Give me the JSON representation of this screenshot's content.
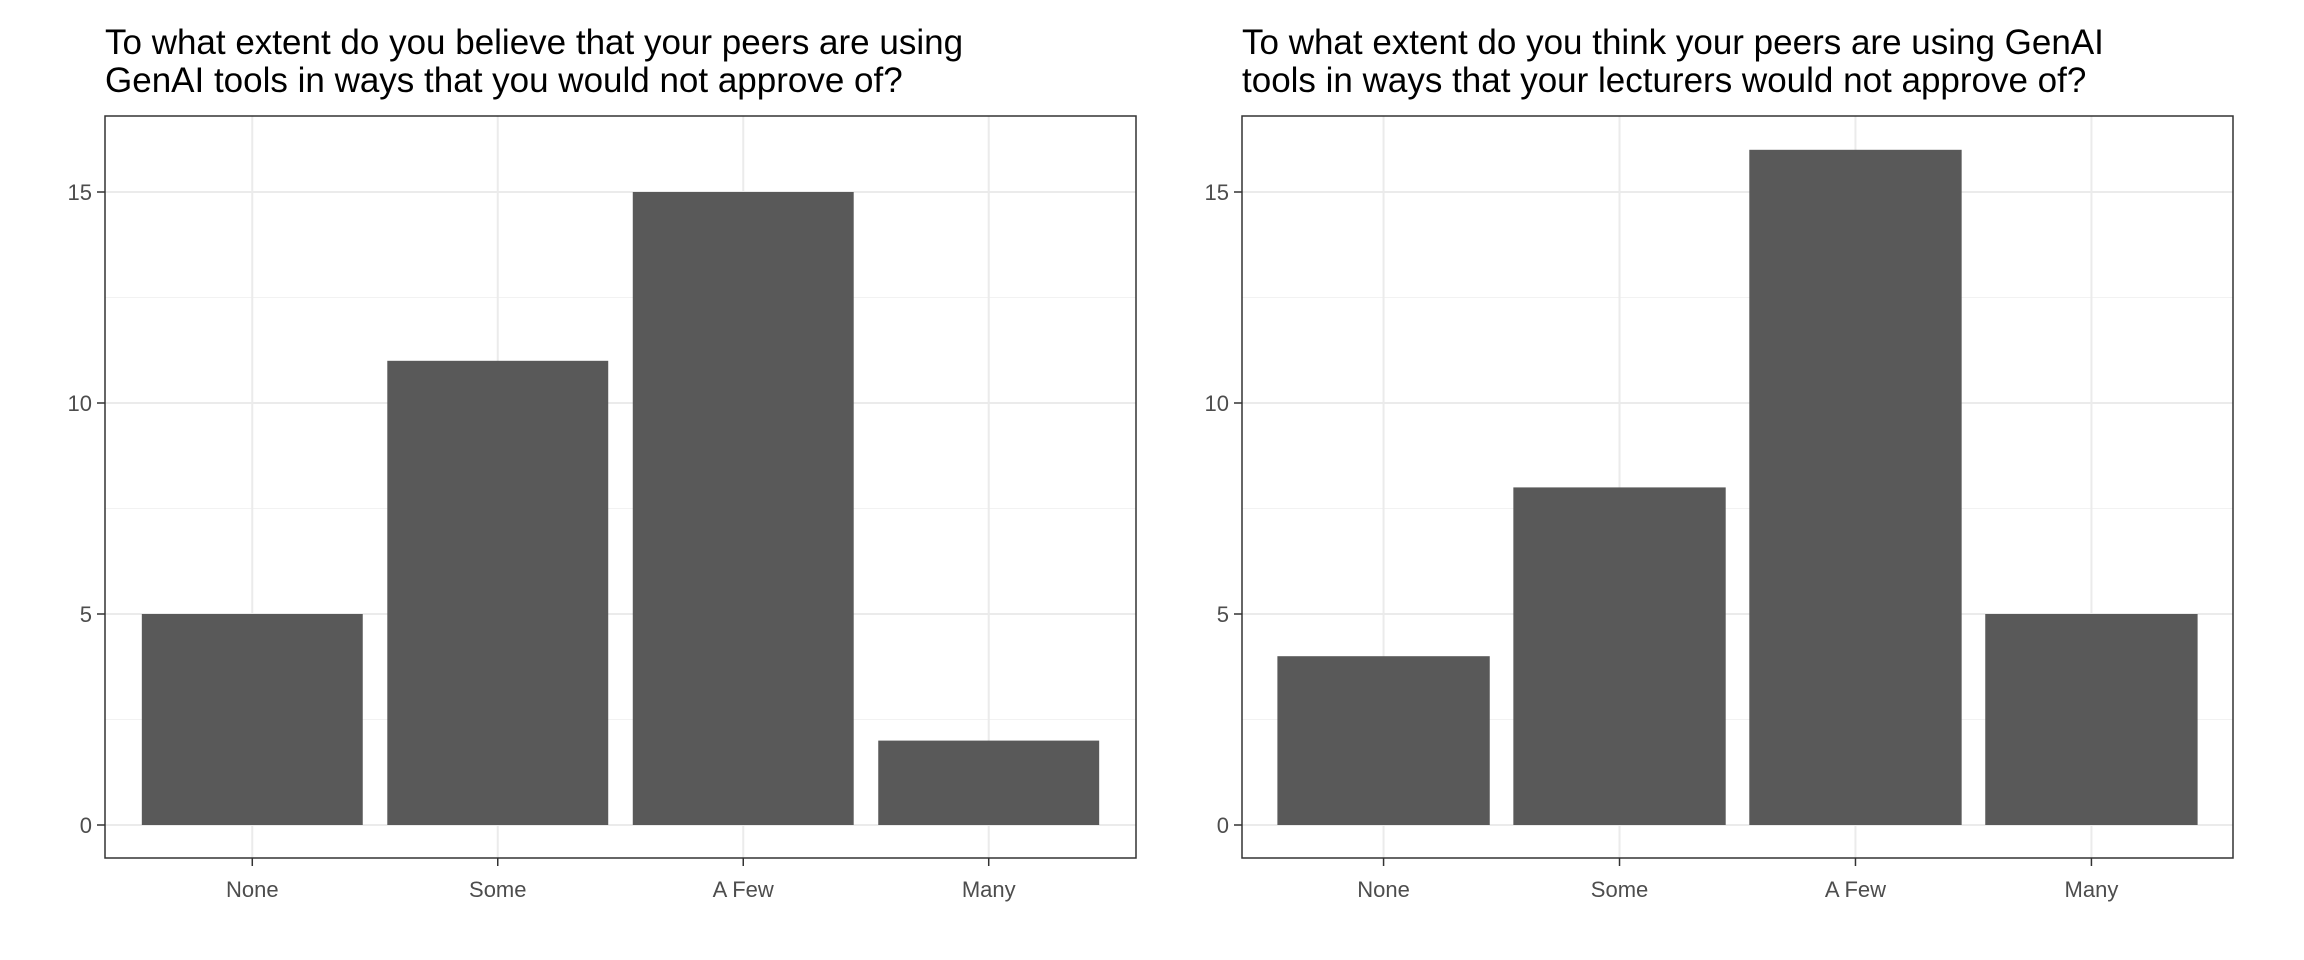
{
  "chart_data": [
    {
      "type": "bar",
      "title": "To what extent do you believe that your peers are using GenAI tools in ways that you would not approve of?",
      "title_lines": [
        "To what extent do you believe that your peers are using",
        "GenAI tools in ways that you would not approve of?"
      ],
      "categories": [
        "None",
        "Some",
        "A Few",
        "Many"
      ],
      "values": [
        5,
        11,
        15,
        2
      ],
      "xlabel": "",
      "ylabel": "",
      "ylim": [
        0,
        16.8
      ],
      "yticks": [
        0,
        5,
        10,
        15
      ],
      "grid": true,
      "bar_color": "#595959"
    },
    {
      "type": "bar",
      "title": "To what extent do you think your peers are using GenAI tools in ways that your lecturers would not approve of?",
      "title_lines": [
        "To what extent do you think your peers are using GenAI",
        "tools in ways that your lecturers would not approve of?"
      ],
      "categories": [
        "None",
        "Some",
        "A Few",
        "Many"
      ],
      "values": [
        4,
        8,
        16,
        5
      ],
      "xlabel": "",
      "ylabel": "",
      "ylim": [
        0,
        16.8
      ],
      "yticks": [
        0,
        5,
        10,
        15
      ],
      "grid": true,
      "bar_color": "#595959"
    }
  ]
}
